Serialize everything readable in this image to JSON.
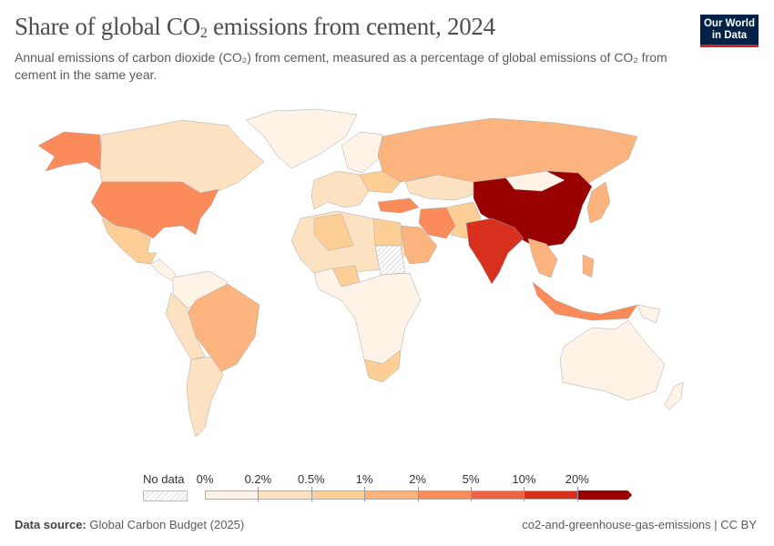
{
  "header": {
    "title_main": "Share of global CO",
    "title_sub": "2",
    "title_rest": " emissions from cement, 2024",
    "subtitle": "Annual emissions of carbon dioxide (CO₂) from cement, measured as a percentage of global emissions of CO₂ from cement in the same year.",
    "logo_line1": "Our World",
    "logo_line2": "in Data"
  },
  "legend": {
    "no_data_label": "No data",
    "ticks": [
      "0%",
      "0.2%",
      "0.5%",
      "1%",
      "2%",
      "5%",
      "10%",
      "20%"
    ],
    "bin_colors": [
      "#fef3e6",
      "#fde2c2",
      "#fdcf97",
      "#fbb47e",
      "#fb8b5a",
      "#ec6447",
      "#d7301f",
      "#990000"
    ]
  },
  "footer": {
    "source_label": "Data source:",
    "source_value": "Global Carbon Budget (2025)",
    "right": "co2-and-greenhouse-gas-emissions | CC BY"
  }
}
